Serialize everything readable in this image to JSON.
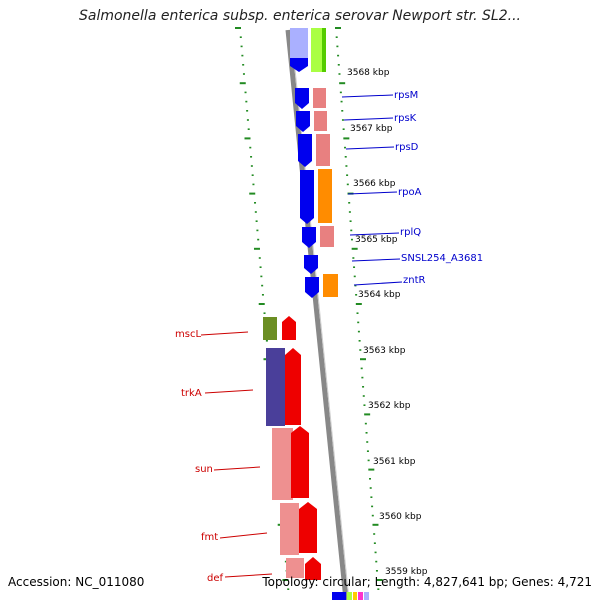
{
  "title": "Salmonella enterica subsp. enterica serovar Newport str. SL2...",
  "footer": {
    "accession": "Accession: NC_011080",
    "summary": "Topology: circular; Length: 4,827,641 bp; Genes: 4,721"
  },
  "colors": {
    "blue": "#0000ee",
    "pink": "#e88080",
    "orange": "#ff8c00",
    "red": "#ee0000",
    "olive": "#6b8e23",
    "slate": "#4a3f9a",
    "lightpink": "#ee9090",
    "lime": "#aaff44",
    "lavender": "#aab0ff",
    "label_blue": "#0000cc",
    "label_red": "#cc0000",
    "tick_green": "#228b22",
    "backbone": "#888888"
  },
  "kbp_ticks": [
    "3568 kbp",
    "3567 kbp",
    "3566 kbp",
    "3565 kbp",
    "3564 kbp",
    "3563 kbp",
    "3562 kbp",
    "3561 kbp",
    "3560 kbp",
    "3559 kbp"
  ],
  "right_genes": [
    {
      "name": "rpsM",
      "color": "pink"
    },
    {
      "name": "rpsK",
      "color": "pink"
    },
    {
      "name": "rpsD",
      "color": "pink"
    },
    {
      "name": "rpoA",
      "color": "orange"
    },
    {
      "name": "rplQ",
      "color": "pink"
    },
    {
      "name": "SNSL254_A3681",
      "color": "blue"
    },
    {
      "name": "zntR",
      "color": "orange"
    }
  ],
  "left_genes": [
    {
      "name": "mscL",
      "color": "olive"
    },
    {
      "name": "trkA",
      "color": "slate"
    },
    {
      "name": "sun",
      "color": "lightpink"
    },
    {
      "name": "fmt",
      "color": "lightpink"
    },
    {
      "name": "def",
      "color": "lightpink"
    }
  ]
}
